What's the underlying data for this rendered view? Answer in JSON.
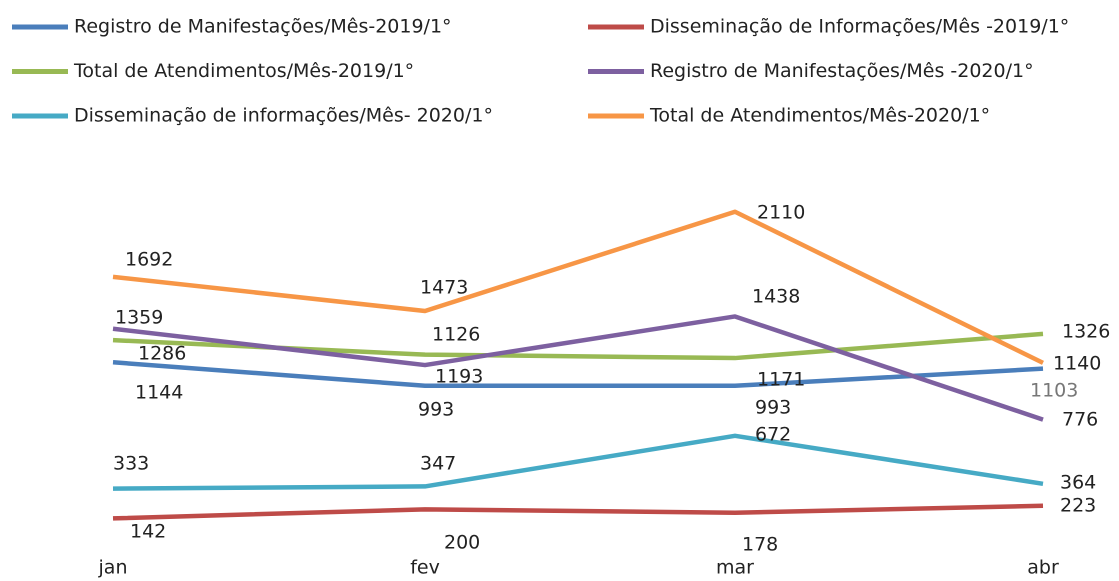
{
  "chart_data": {
    "type": "line",
    "categories": [
      "jan",
      "fev",
      "mar",
      "abr"
    ],
    "ylim": [
      0,
      2500
    ],
    "series": [
      {
        "name": "Registro de Manifestações/Mês-2019/1°",
        "color": "#4a7ebb",
        "values": [
          1144,
          993,
          993,
          1103
        ]
      },
      {
        "name": "Disseminação de Informações/Mês -2019/1°",
        "color": "#be4b48",
        "values": [
          142,
          200,
          178,
          223
        ]
      },
      {
        "name": "Total de Atendimentos/Mês-2019/1°",
        "color": "#98b954",
        "values": [
          1286,
          1193,
          1171,
          1326
        ]
      },
      {
        "name": "Registro de Manifestações/Mês -2020/1°",
        "color": "#7d60a0",
        "values": [
          1359,
          1126,
          1438,
          776
        ]
      },
      {
        "name": "Disseminação de informações/Mês- 2020/1°",
        "color": "#46aac5",
        "values": [
          333,
          347,
          672,
          364
        ]
      },
      {
        "name": "Total de Atendimentos/Mês-2020/1°",
        "color": "#f79646",
        "values": [
          1692,
          1473,
          2110,
          1140
        ]
      }
    ]
  }
}
